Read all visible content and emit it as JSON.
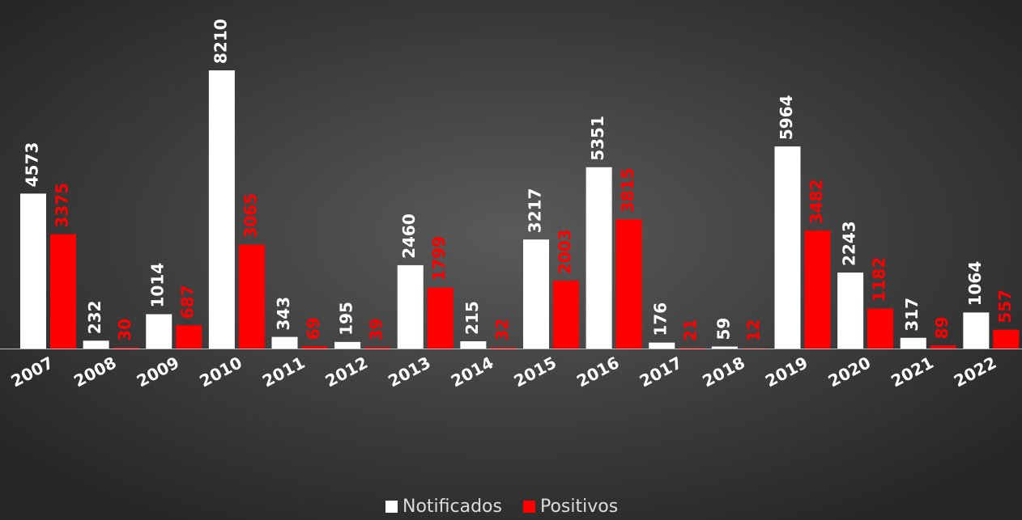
{
  "chart_data": {
    "type": "bar",
    "categories": [
      "2007",
      "2008",
      "2009",
      "2010",
      "2011",
      "2012",
      "2013",
      "2014",
      "2015",
      "2016",
      "2017",
      "2018",
      "2019",
      "2020",
      "2021",
      "2022"
    ],
    "series": [
      {
        "name": "Notificados",
        "color": "#ffffff",
        "values": [
          4573,
          232,
          1014,
          8210,
          343,
          195,
          2460,
          215,
          3217,
          5351,
          176,
          59,
          5964,
          2243,
          317,
          1064
        ]
      },
      {
        "name": "Positivos",
        "color": "#ff0000",
        "values": [
          3375,
          30,
          687,
          3065,
          69,
          39,
          1799,
          32,
          2003,
          3815,
          21,
          12,
          3482,
          1182,
          89,
          557
        ]
      }
    ],
    "legend": "bottom"
  }
}
